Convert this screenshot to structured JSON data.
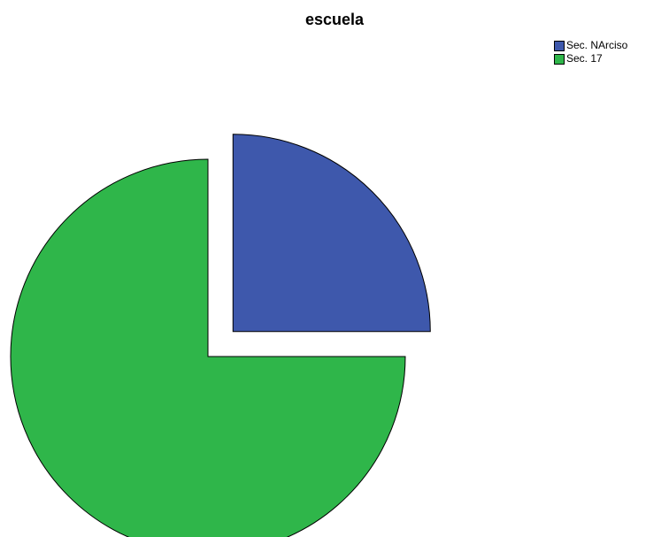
{
  "chart_data": {
    "type": "pie",
    "title": "escuela",
    "legend_position": "top-right",
    "slices": [
      {
        "label": "Sec. NArciso",
        "value": 25.0,
        "color": "#3e58ac",
        "exploded": true
      },
      {
        "label": "Sec. 17",
        "value": 75.0,
        "color": "#2fb64a",
        "exploded": false
      }
    ]
  }
}
